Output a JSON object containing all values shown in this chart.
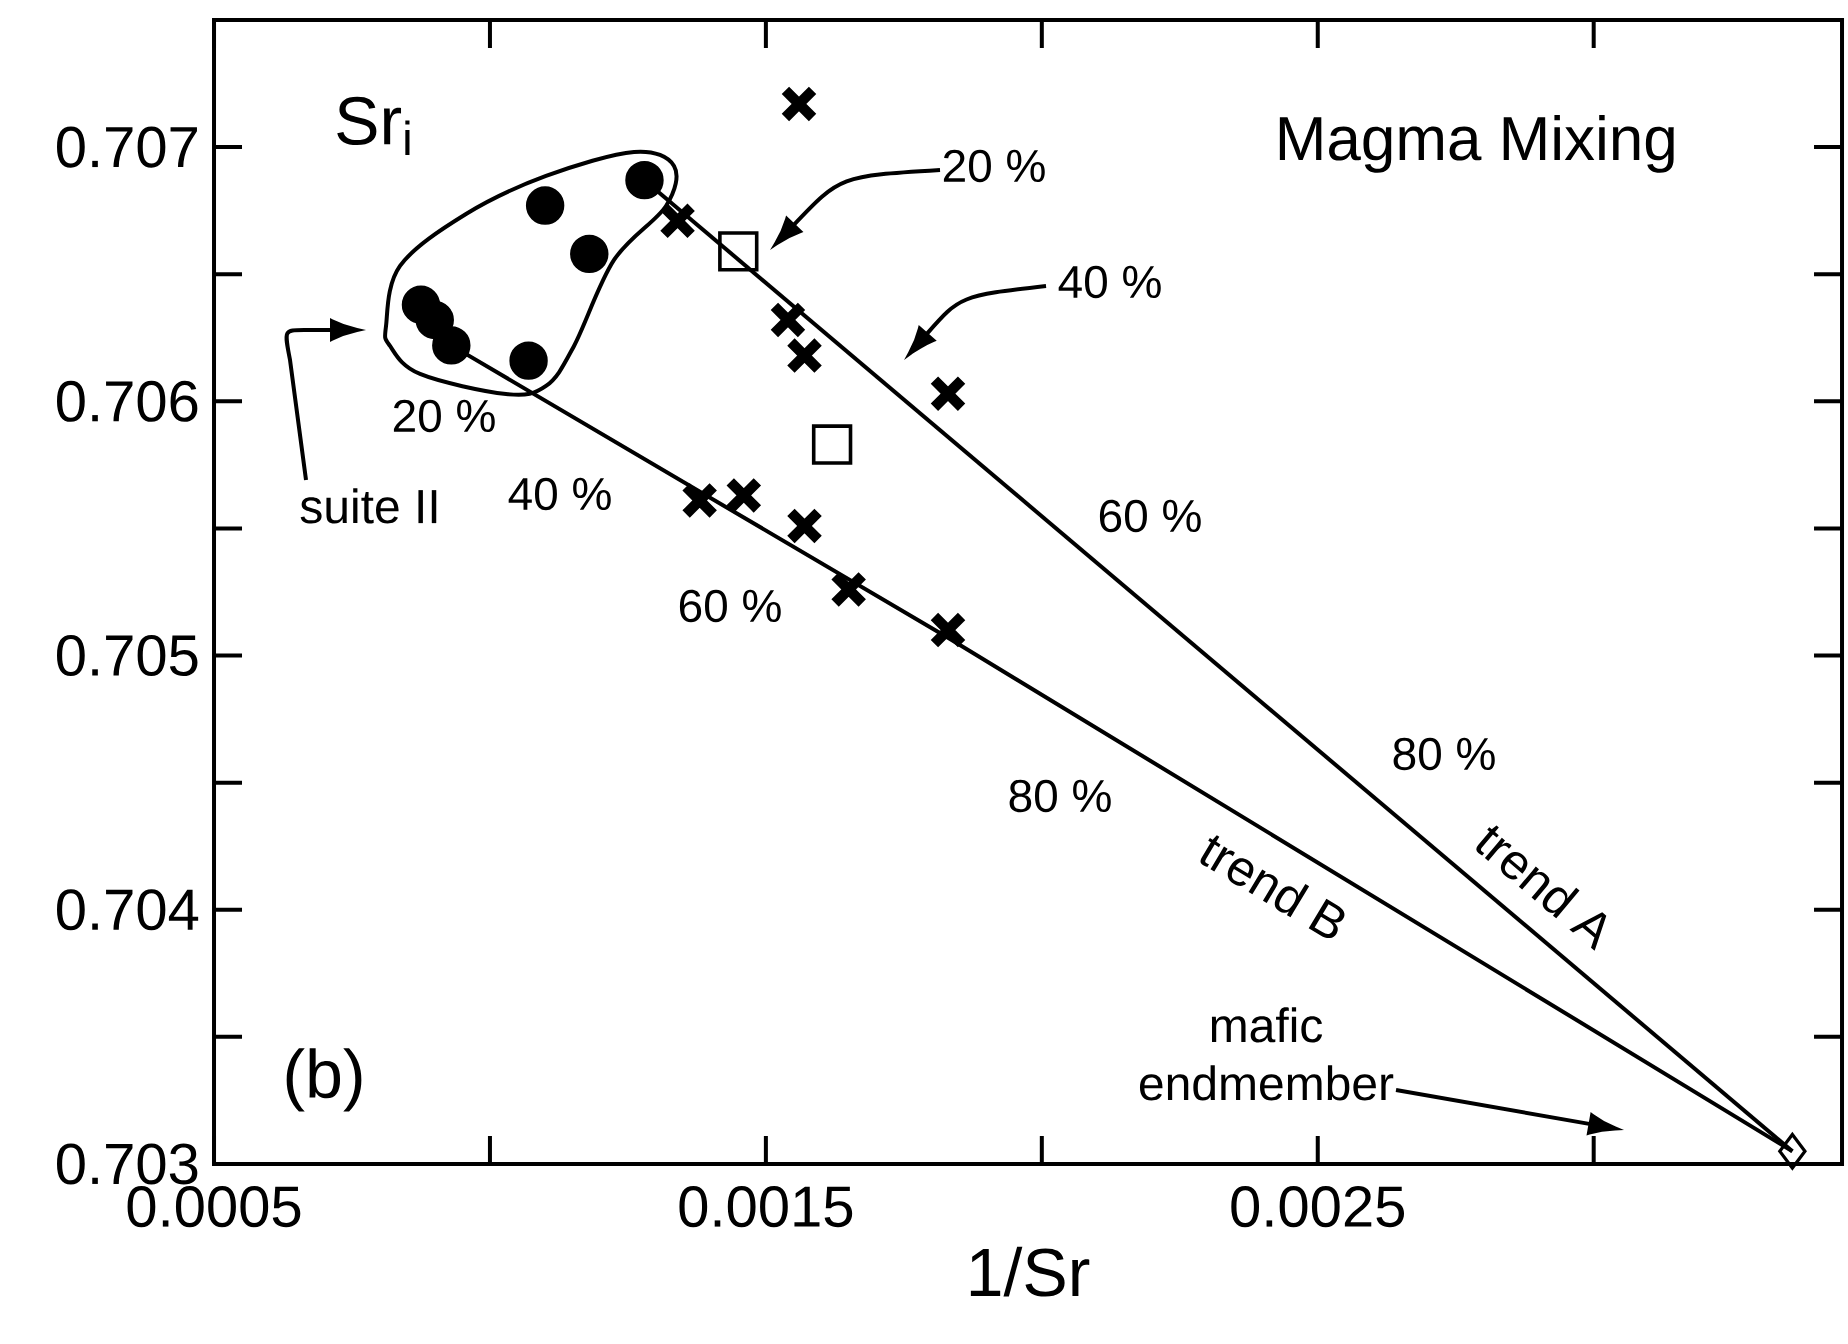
{
  "chart_data": {
    "type": "scatter",
    "title": "Magma Mixing",
    "xlabel": "1/Sr",
    "ylabel": "Sr$_{i}$",
    "xlim": [
      0.0005,
      0.00345
    ],
    "ylim": [
      0.703,
      0.7075
    ],
    "xticks": [
      0.0005,
      {
        "value": 0.001,
        "label": null
      },
      0.0015,
      {
        "value": 0.002,
        "label": null
      },
      0.0025,
      {
        "value": 0.003,
        "label": null
      }
    ],
    "yticks": [
      0.703,
      {
        "value": 0.7035,
        "label": null
      },
      0.704,
      {
        "value": 0.7045,
        "label": null
      },
      0.705,
      {
        "value": 0.7055,
        "label": null
      },
      0.706,
      {
        "value": 0.7065,
        "label": null
      },
      0.707
    ],
    "series": [
      {
        "marker": "circle",
        "color": "#000000",
        "x": [
          0.000875,
          0.0009,
          0.00093,
          0.00107,
          0.0011,
          0.00118,
          0.00128
        ],
        "values": [
          0.70638,
          0.70632,
          0.70622,
          0.70616,
          0.70677,
          0.70658,
          0.70687
        ]
      },
      {
        "marker": "cross",
        "color": "#000000",
        "x": [
          0.00156,
          0.00134,
          0.00154,
          0.00157,
          0.00183,
          0.00138,
          0.00146,
          0.00157,
          0.00165,
          0.00183
        ],
        "values": [
          0.70717,
          0.70671,
          0.70632,
          0.70618,
          0.70603,
          0.70561,
          0.70563,
          0.70551,
          0.70526,
          0.7051
        ]
      },
      {
        "marker": "square",
        "color": "#000000",
        "x": [
          0.00145,
          0.00162
        ],
        "values": [
          0.70659,
          0.70583
        ]
      },
      {
        "marker": "diamond",
        "color": "#000000",
        "x": [
          0.00336
        ],
        "values": [
          0.70305
        ]
      },
      {
        "type": "line",
        "name": "trend A",
        "color": "#000000",
        "x": [
          0.00128,
          0.00336
        ],
        "values": [
          0.70687,
          0.70305
        ]
      },
      {
        "type": "line",
        "name": "trend B",
        "color": "#000000",
        "x": [
          0.00093,
          0.00183,
          0.00336
        ],
        "values": [
          0.70622,
          0.70507,
          0.70305
        ]
      }
    ],
    "annotations": [
      "(b)",
      "suite II",
      "mafic endmember",
      "20 %",
      "40 %",
      "60 %",
      "80 %",
      "20 %",
      "40 %",
      "60 %",
      "80 %"
    ]
  }
}
